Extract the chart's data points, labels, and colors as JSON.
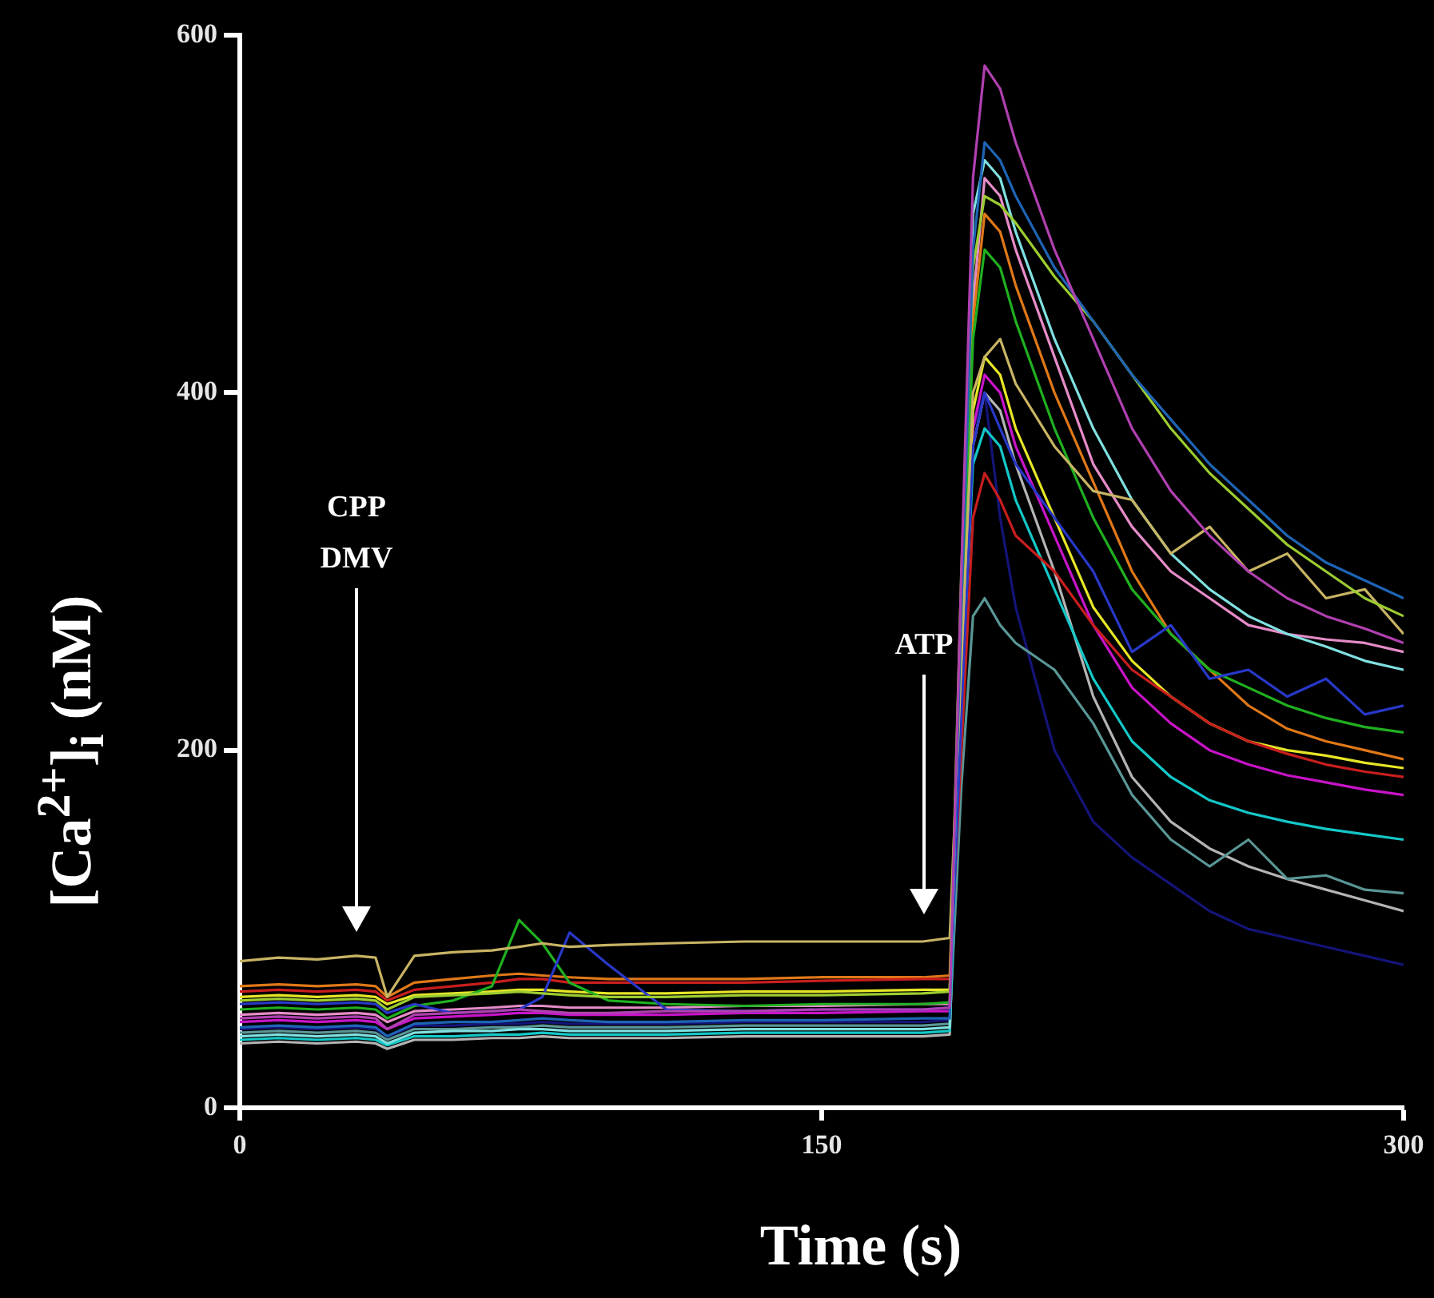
{
  "chart_data": {
    "type": "line",
    "xlabel": "Time (s)",
    "ylabel": "[Ca$^{2+}$]$_{i}$ (nM)",
    "x": [
      0,
      10,
      20,
      30,
      35,
      38,
      45,
      55,
      65,
      72,
      78,
      85,
      95,
      110,
      130,
      150,
      176,
      183,
      186,
      189,
      192,
      196,
      200,
      210,
      220,
      230,
      240,
      250,
      260,
      270,
      280,
      290,
      300
    ],
    "xlim": [
      0,
      300
    ],
    "xticks": [
      0,
      150,
      300
    ],
    "ylim": [
      0,
      600
    ],
    "yticks": [
      0,
      200,
      400,
      600
    ],
    "grid": false,
    "legend": false,
    "marker": "none",
    "line_style": "solid",
    "annotations": [
      "CPP\nDMV",
      "ATP"
    ],
    "series": [
      {
        "color": "#b040b0",
        "values": [
          50,
          51,
          50,
          51,
          50,
          44,
          52,
          53,
          54,
          55,
          54,
          53,
          53,
          54,
          54,
          55,
          55,
          56,
          300,
          520,
          583,
          570,
          540,
          480,
          430,
          380,
          345,
          320,
          300,
          285,
          275,
          268,
          260
        ]
      },
      {
        "color": "#1e64b4",
        "values": [
          45,
          46,
          45,
          46,
          45,
          40,
          47,
          48,
          48,
          49,
          50,
          49,
          48,
          48,
          49,
          49,
          50,
          50,
          280,
          480,
          540,
          530,
          510,
          470,
          440,
          410,
          385,
          360,
          340,
          320,
          305,
          295,
          285
        ]
      },
      {
        "color": "#9ccc30",
        "values": [
          60,
          61,
          60,
          61,
          60,
          55,
          62,
          63,
          64,
          65,
          64,
          63,
          62,
          62,
          63,
          63,
          64,
          65,
          300,
          470,
          510,
          505,
          495,
          465,
          440,
          410,
          380,
          355,
          335,
          315,
          300,
          285,
          275
        ]
      },
      {
        "color": "#c8b464",
        "values": [
          82,
          84,
          83,
          85,
          84,
          62,
          85,
          87,
          88,
          90,
          92,
          90,
          91,
          92,
          93,
          93,
          93,
          95,
          250,
          400,
          420,
          430,
          405,
          370,
          345,
          340,
          310,
          325,
          300,
          310,
          285,
          290,
          265
        ]
      },
      {
        "color": "#80e0e0",
        "values": [
          40,
          41,
          40,
          41,
          40,
          36,
          42,
          43,
          43,
          44,
          44,
          43,
          43,
          43,
          44,
          44,
          44,
          45,
          290,
          500,
          530,
          520,
          490,
          430,
          380,
          340,
          310,
          290,
          275,
          265,
          258,
          250,
          245
        ]
      },
      {
        "color": "#2838c8",
        "values": [
          58,
          59,
          58,
          59,
          58,
          53,
          58,
          53,
          54,
          55,
          62,
          98,
          80,
          55,
          54,
          55,
          55,
          56,
          220,
          370,
          400,
          380,
          360,
          330,
          300,
          255,
          270,
          240,
          245,
          230,
          240,
          220,
          225
        ]
      },
      {
        "color": "#20b020",
        "values": [
          55,
          56,
          55,
          56,
          55,
          50,
          57,
          60,
          68,
          105,
          92,
          70,
          60,
          58,
          57,
          58,
          58,
          59,
          260,
          430,
          480,
          470,
          440,
          380,
          330,
          290,
          265,
          245,
          235,
          225,
          218,
          213,
          210
        ]
      },
      {
        "color": "#c81e1e",
        "values": [
          65,
          66,
          65,
          66,
          65,
          60,
          66,
          68,
          70,
          72,
          72,
          70,
          70,
          70,
          70,
          71,
          72,
          72,
          200,
          330,
          355,
          340,
          320,
          300,
          270,
          245,
          230,
          215,
          205,
          198,
          192,
          188,
          185
        ]
      },
      {
        "color": "#e6e628",
        "values": [
          62,
          63,
          62,
          63,
          62,
          58,
          63,
          64,
          65,
          66,
          66,
          65,
          64,
          64,
          65,
          65,
          66,
          66,
          250,
          390,
          420,
          410,
          380,
          330,
          280,
          250,
          230,
          215,
          205,
          200,
          197,
          193,
          190
        ]
      },
      {
        "color": "#c814c8",
        "values": [
          48,
          49,
          48,
          49,
          48,
          44,
          50,
          51,
          52,
          53,
          53,
          52,
          52,
          52,
          53,
          53,
          54,
          54,
          240,
          380,
          410,
          400,
          370,
          320,
          270,
          235,
          215,
          200,
          192,
          186,
          182,
          178,
          175
        ]
      },
      {
        "color": "#14c8c8",
        "values": [
          38,
          39,
          38,
          39,
          38,
          35,
          40,
          40,
          41,
          41,
          42,
          41,
          41,
          41,
          42,
          42,
          42,
          43,
          230,
          360,
          380,
          370,
          340,
          290,
          240,
          205,
          185,
          172,
          165,
          160,
          156,
          153,
          150
        ]
      },
      {
        "color": "#5a9696",
        "values": [
          42,
          43,
          42,
          43,
          42,
          38,
          44,
          44,
          45,
          45,
          46,
          45,
          45,
          45,
          46,
          46,
          46,
          47,
          180,
          275,
          285,
          270,
          260,
          245,
          215,
          175,
          150,
          135,
          150,
          128,
          130,
          122,
          120
        ]
      },
      {
        "color": "#141478",
        "values": [
          44,
          45,
          44,
          45,
          44,
          40,
          46,
          46,
          47,
          47,
          48,
          47,
          47,
          47,
          48,
          48,
          48,
          49,
          230,
          380,
          400,
          330,
          280,
          200,
          160,
          140,
          125,
          110,
          100,
          95,
          90,
          85,
          80
        ]
      },
      {
        "color": "#b4b4b4",
        "values": [
          36,
          37,
          36,
          37,
          36,
          33,
          38,
          38,
          39,
          39,
          40,
          39,
          39,
          39,
          40,
          40,
          40,
          41,
          230,
          370,
          400,
          390,
          360,
          300,
          230,
          185,
          160,
          145,
          135,
          128,
          122,
          116,
          110
        ]
      },
      {
        "color": "#e07818",
        "values": [
          68,
          69,
          68,
          69,
          68,
          62,
          70,
          72,
          74,
          75,
          74,
          73,
          72,
          72,
          72,
          73,
          73,
          74,
          260,
          440,
          500,
          490,
          460,
          400,
          350,
          300,
          265,
          245,
          225,
          212,
          205,
          200,
          195
        ]
      },
      {
        "color": "#e68cc8",
        "values": [
          52,
          53,
          52,
          53,
          52,
          48,
          54,
          55,
          56,
          57,
          57,
          56,
          56,
          56,
          57,
          57,
          58,
          58,
          270,
          450,
          520,
          510,
          480,
          420,
          360,
          325,
          300,
          285,
          270,
          265,
          262,
          260,
          255
        ]
      }
    ]
  }
}
